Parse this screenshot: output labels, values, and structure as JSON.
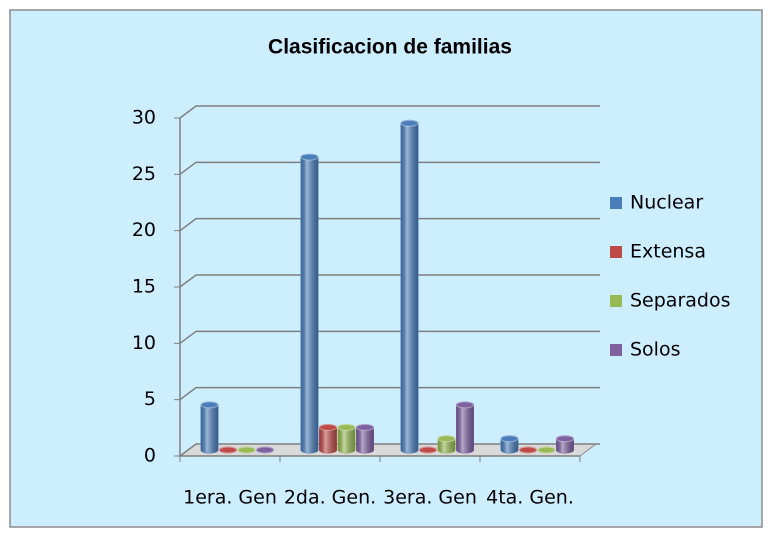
{
  "chart_data": {
    "type": "bar",
    "title": "Clasificacion de familias",
    "categories": [
      "1era. Gen",
      "2da. Gen.",
      "3era. Gen",
      "4ta. Gen."
    ],
    "series": [
      {
        "name": "Nuclear",
        "color": "#4a7ebb",
        "values": [
          4,
          26,
          29,
          1
        ]
      },
      {
        "name": "Extensa",
        "color": "#be4b48",
        "values": [
          0,
          2,
          0,
          0
        ]
      },
      {
        "name": "Separados",
        "color": "#98b954",
        "values": [
          0,
          2,
          1,
          0
        ]
      },
      {
        "name": "Solos",
        "color": "#7d60a0",
        "values": [
          0,
          2,
          4,
          1
        ]
      }
    ],
    "ylim": [
      0,
      30
    ],
    "yticks": [
      0,
      5,
      10,
      15,
      20,
      25,
      30
    ],
    "grid": true,
    "legend": "right"
  }
}
